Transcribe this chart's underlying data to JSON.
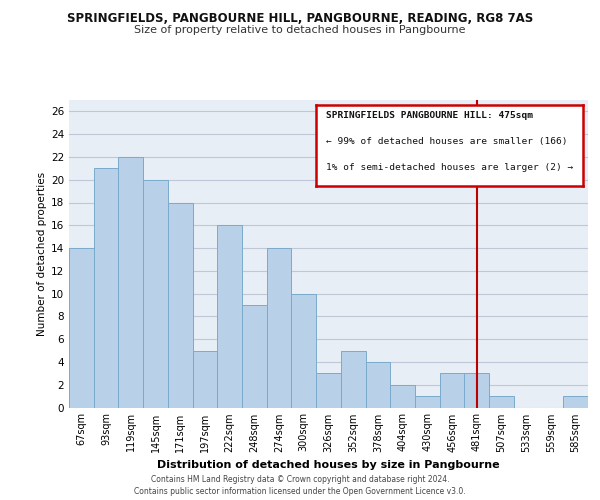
{
  "title": "SPRINGFIELDS, PANGBOURNE HILL, PANGBOURNE, READING, RG8 7AS",
  "subtitle": "Size of property relative to detached houses in Pangbourne",
  "xlabel": "Distribution of detached houses by size in Pangbourne",
  "ylabel": "Number of detached properties",
  "bin_labels": [
    "67sqm",
    "93sqm",
    "119sqm",
    "145sqm",
    "171sqm",
    "197sqm",
    "222sqm",
    "248sqm",
    "274sqm",
    "300sqm",
    "326sqm",
    "352sqm",
    "378sqm",
    "404sqm",
    "430sqm",
    "456sqm",
    "481sqm",
    "507sqm",
    "533sqm",
    "559sqm",
    "585sqm"
  ],
  "bar_heights": [
    14,
    21,
    22,
    20,
    18,
    5,
    16,
    9,
    14,
    10,
    3,
    5,
    4,
    2,
    1,
    3,
    3,
    1,
    0,
    0,
    1
  ],
  "bar_color": "#b8d0e8",
  "bar_edgecolor": "#7aaacb",
  "vline_x": 16,
  "vline_color": "#bb0000",
  "annotation_title": "SPRINGFIELDS PANGBOURNE HILL: 475sqm",
  "annotation_line1": "← 99% of detached houses are smaller (166)",
  "annotation_line2": "1% of semi-detached houses are larger (2) →",
  "annotation_border_color": "#cc0000",
  "ylim": [
    0,
    27
  ],
  "yticks": [
    0,
    2,
    4,
    6,
    8,
    10,
    12,
    14,
    16,
    18,
    20,
    22,
    24,
    26
  ],
  "footer1": "Contains HM Land Registry data © Crown copyright and database right 2024.",
  "footer2": "Contains public sector information licensed under the Open Government Licence v3.0.",
  "bg_color": "#e8eef5",
  "grid_color": "#c0c8d8"
}
